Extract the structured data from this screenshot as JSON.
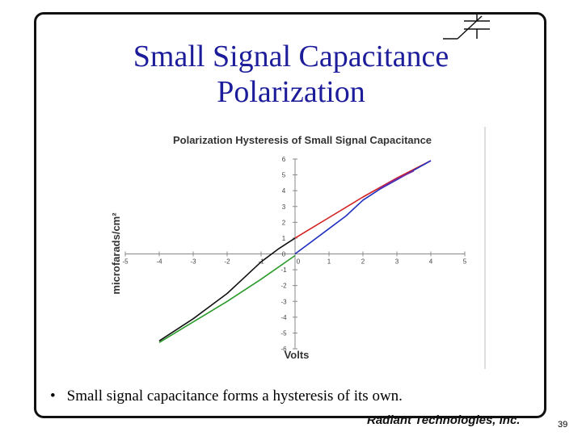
{
  "slide": {
    "title_line1": "Small Signal Capacitance",
    "title_line2": "Polarization",
    "bullet": "Small signal capacitance forms a hysteresis of its own.",
    "bullet_marker": "•",
    "brand": "Radiant Technologies, Inc.",
    "page_number": "39",
    "title_color": "#1d1d9c"
  },
  "chart_data": {
    "type": "line",
    "title": "Polarization  Hysteresis of Small Signal  Capacitance",
    "xlabel": "Volts",
    "ylabel": "microfarads/cm²",
    "xlim": [
      -5,
      5
    ],
    "ylim": [
      -6,
      6
    ],
    "xticks": [
      -5,
      -4,
      -3,
      -2,
      -1,
      0,
      1,
      2,
      3,
      4,
      5
    ],
    "yticks": [
      -6,
      -5,
      -4,
      -3,
      -2,
      -1,
      0,
      1,
      2,
      3,
      4,
      5,
      6
    ],
    "ytick_labels": [
      "-6",
      "-5",
      "-4",
      "-3",
      "-2",
      "-1",
      "0",
      "1",
      "2",
      "3",
      "4",
      "5",
      "6"
    ],
    "grid": false,
    "legend": "none",
    "series": [
      {
        "color": "#d42020",
        "x": [
          0,
          1,
          2,
          3,
          4
        ],
        "y": [
          1.0,
          2.3,
          3.6,
          4.8,
          5.9
        ]
      },
      {
        "color": "#2030c0",
        "x": [
          0,
          1,
          1.5,
          2,
          2.5,
          3,
          4
        ],
        "y": [
          0,
          1.6,
          2.4,
          3.4,
          4.1,
          4.7,
          5.9
        ]
      },
      {
        "color": "#7a2aa0",
        "x": [
          2.5,
          3,
          3.5
        ],
        "y": [
          4.15,
          4.75,
          5.25
        ]
      },
      {
        "color": "#2a9a2a",
        "x": [
          -4,
          -3,
          -2,
          -1,
          0
        ],
        "y": [
          -5.6,
          -4.3,
          -3.0,
          -1.6,
          -0.1
        ]
      },
      {
        "color": "#111111",
        "x": [
          -4,
          -3,
          -2,
          -1.5,
          -1,
          -0.5,
          0
        ],
        "y": [
          -5.5,
          -4.1,
          -2.5,
          -1.5,
          -0.5,
          0.3,
          1.0
        ]
      }
    ]
  }
}
